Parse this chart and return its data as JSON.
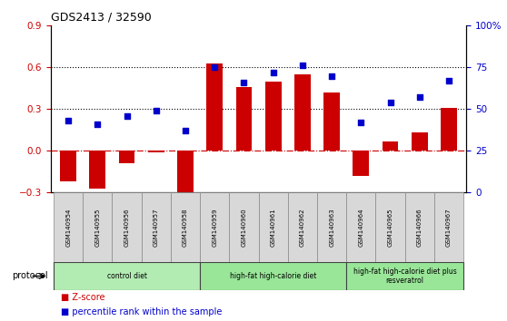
{
  "title": "GDS2413 / 32590",
  "samples": [
    "GSM140954",
    "GSM140955",
    "GSM140956",
    "GSM140957",
    "GSM140958",
    "GSM140959",
    "GSM140960",
    "GSM140961",
    "GSM140962",
    "GSM140963",
    "GSM140964",
    "GSM140965",
    "GSM140966",
    "GSM140967"
  ],
  "z_scores": [
    -0.22,
    -0.27,
    -0.09,
    -0.01,
    -0.35,
    0.63,
    0.46,
    0.5,
    0.55,
    0.42,
    -0.18,
    0.07,
    0.13,
    0.31
  ],
  "percentile_ranks": [
    43,
    41,
    46,
    49,
    37,
    75,
    66,
    72,
    76,
    70,
    42,
    54,
    57,
    67
  ],
  "ylim_left": [
    -0.3,
    0.9
  ],
  "ylim_right": [
    0,
    100
  ],
  "yticks_left": [
    -0.3,
    0.0,
    0.3,
    0.6,
    0.9
  ],
  "yticks_right": [
    0,
    25,
    50,
    75,
    100
  ],
  "bar_color": "#cc0000",
  "dot_color": "#0000cc",
  "groups": [
    {
      "label": "control diet",
      "start": 0,
      "end": 4,
      "color": "#b3ecb3"
    },
    {
      "label": "high-fat high-calorie diet",
      "start": 5,
      "end": 9,
      "color": "#99e699"
    },
    {
      "label": "high-fat high-calorie diet plus\nresveratrol",
      "start": 10,
      "end": 13,
      "color": "#99e699"
    }
  ],
  "group_dividers": [
    4.5,
    9.5
  ],
  "protocol_label": "protocol",
  "legend_zscore": "Z-score",
  "legend_percentile": "percentile rank within the sample",
  "hline_color": "#cc0000",
  "background_color": "#ffffff",
  "tick_label_color_left": "#cc0000",
  "tick_label_color_right": "#0000cc",
  "sample_box_color": "#d8d8d8",
  "sample_box_edge": "#888888"
}
